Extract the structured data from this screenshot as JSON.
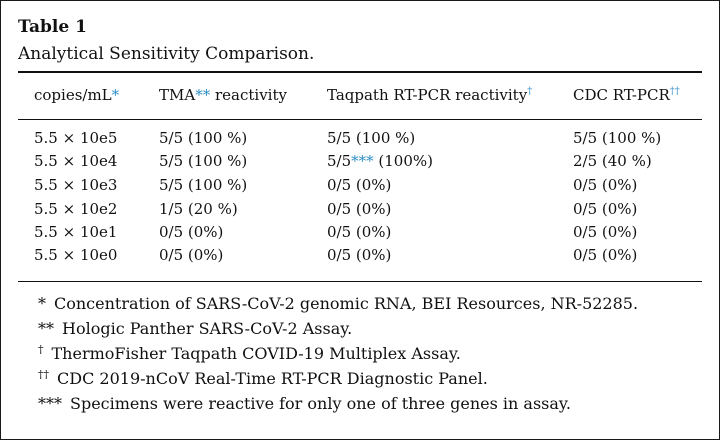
{
  "table": {
    "title": "Table 1",
    "caption": "Analytical Sensitivity Comparison.",
    "headers": [
      {
        "text": "copies/mL",
        "mark": "*"
      },
      {
        "text": "TMA",
        "mark": "**",
        "suffix": " reactivity"
      },
      {
        "text": "Taqpath RT-PCR reactivity",
        "mark": "†"
      },
      {
        "text": "CDC RT-PCR",
        "mark": "††"
      }
    ],
    "rows": [
      [
        "5.5 × 10e5",
        "5/5 (100 %)",
        "5/5 (100 %)",
        "5/5 (100 %)"
      ],
      [
        "5.5 × 10e4",
        "5/5 (100 %)",
        "5/5",
        "2/5 (40 %)"
      ],
      [
        "5.5 × 10e3",
        "5/5 (100 %)",
        "0/5 (0%)",
        "0/5 (0%)"
      ],
      [
        "5.5 × 10e2",
        "1/5 (20 %)",
        "0/5 (0%)",
        "0/5 (0%)"
      ],
      [
        "5.5 × 10e1",
        "0/5 (0%)",
        "0/5 (0%)",
        "0/5 (0%)"
      ],
      [
        "5.5 × 10e0",
        "0/5 (0%)",
        "0/5 (0%)",
        "0/5 (0%)"
      ]
    ],
    "row2_taqpath_mark": "***",
    "row2_taqpath_suffix": " (100%)",
    "footnotes": [
      {
        "mark": "*",
        "text": "Concentration of SARS-CoV-2 genomic RNA, BEI Resources, NR-52285."
      },
      {
        "mark": "**",
        "text": "Hologic Panther SARS-CoV-2 Assay."
      },
      {
        "mark": "†",
        "text": "ThermoFisher Taqpath COVID-19 Multiplex Assay."
      },
      {
        "mark": "††",
        "text": "CDC 2019-nCoV Real-Time RT-PCR Diagnostic Panel."
      },
      {
        "mark": "***",
        "text": "Specimens were reactive for only one of three genes in assay."
      }
    ],
    "colors": {
      "footnote_marker": "#2f8fc7",
      "text": "#111111"
    }
  }
}
